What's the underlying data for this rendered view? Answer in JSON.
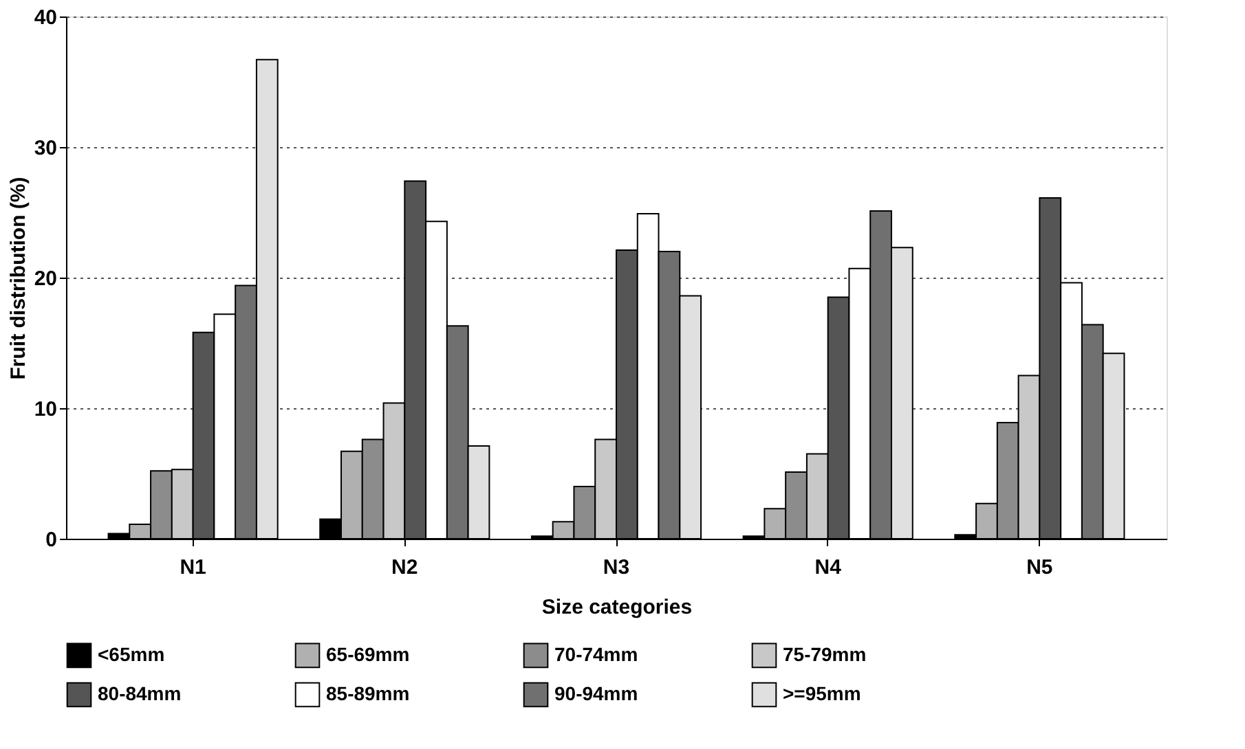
{
  "chart_data": {
    "type": "bar",
    "xlabel": "Size categories",
    "ylabel": "Fruit distribution (%)",
    "categories": [
      "N1",
      "N2",
      "N3",
      "N4",
      "N5"
    ],
    "series": [
      {
        "name": "<65mm",
        "color": "#000000",
        "values": [
          0.4,
          1.5,
          0.2,
          0.2,
          0.3
        ]
      },
      {
        "name": "65-69mm",
        "color": "#b0b0b0",
        "values": [
          1.1,
          6.7,
          1.3,
          2.3,
          2.7
        ]
      },
      {
        "name": "70-74mm",
        "color": "#8c8c8c",
        "values": [
          5.2,
          7.6,
          4.0,
          5.1,
          8.9
        ]
      },
      {
        "name": "75-79mm",
        "color": "#c8c8c8",
        "values": [
          5.3,
          10.4,
          7.6,
          6.5,
          12.5
        ]
      },
      {
        "name": "80-84mm",
        "color": "#555555",
        "values": [
          15.8,
          27.4,
          22.1,
          18.5,
          26.1
        ]
      },
      {
        "name": "85-89mm",
        "color": "#ffffff",
        "values": [
          17.2,
          24.3,
          24.9,
          20.7,
          19.6
        ]
      },
      {
        "name": "90-94mm",
        "color": "#707070",
        "values": [
          19.4,
          16.3,
          22.0,
          25.1,
          16.4
        ]
      },
      {
        "name": ">=95mm",
        "color": "#e0e0e0",
        "values": [
          36.7,
          7.1,
          18.6,
          22.3,
          14.2
        ]
      }
    ],
    "ylim": [
      0,
      40
    ],
    "yticks": [
      0,
      10,
      20,
      30,
      40
    ],
    "grid": "y",
    "legend": "bottom"
  }
}
